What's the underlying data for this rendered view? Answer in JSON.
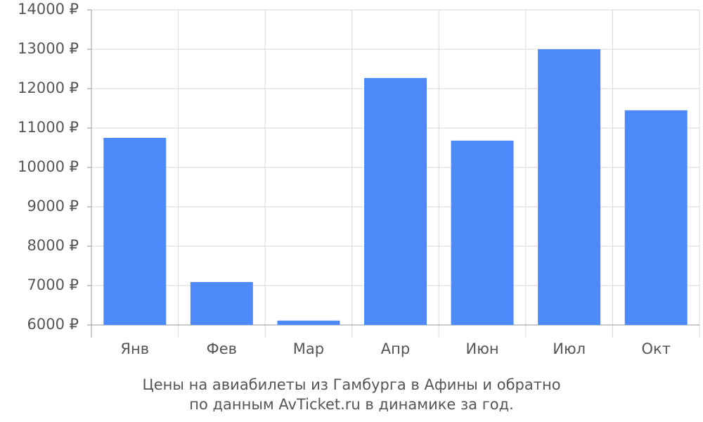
{
  "chart_data": {
    "type": "bar",
    "caption": [
      "Цены на авиабилеты из Гамбурга в Афины и обратно",
      "по данным AvTicket.ru в динамике за год."
    ],
    "categories": [
      "Янв",
      "Фев",
      "Мар",
      "Апр",
      "Июн",
      "Июл",
      "Окт"
    ],
    "values": [
      10750,
      7090,
      6110,
      12270,
      10680,
      13000,
      11450
    ],
    "color": "#4d89f9",
    "ylim": [
      6000,
      14000
    ],
    "yticks": [
      {
        "value": 6000,
        "label": "6000 ₽"
      },
      {
        "value": 7000,
        "label": "7000 ₽"
      },
      {
        "value": 8000,
        "label": "8000 ₽"
      },
      {
        "value": 9000,
        "label": "9000 ₽"
      },
      {
        "value": 10000,
        "label": "10000 ₽"
      },
      {
        "value": 11000,
        "label": "11000 ₽"
      },
      {
        "value": 12000,
        "label": "12000 ₽"
      },
      {
        "value": 13000,
        "label": "13000 ₽"
      },
      {
        "value": 14000,
        "label": "14000 ₽"
      }
    ],
    "grid": true
  }
}
